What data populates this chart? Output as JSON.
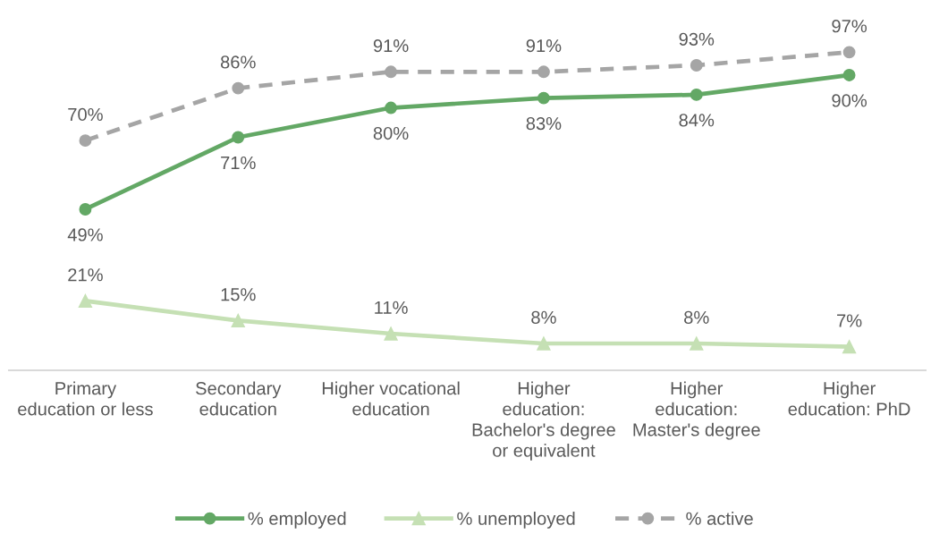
{
  "chart_data": {
    "type": "line",
    "categories": [
      "Primary\neducation or less",
      "Secondary\neducation",
      "Higher vocational\neducation",
      "Higher\neducation:\nBachelor's degree\nor equivalent",
      "Higher\neducation:\nMaster's degree",
      "Higher\neducation: PhD"
    ],
    "series": [
      {
        "name": "% employed",
        "color": "#63a865",
        "values": [
          49,
          71,
          80,
          83,
          84,
          90
        ],
        "value_labels": [
          "49%",
          "71%",
          "80%",
          "83%",
          "84%",
          "90%"
        ],
        "marker": "circle",
        "line_style": "solid"
      },
      {
        "name": "% unemployed",
        "color": "#c5e0b4",
        "values": [
          21,
          15,
          11,
          8,
          8,
          7
        ],
        "value_labels": [
          "21%",
          "15%",
          "11%",
          "8%",
          "8%",
          "7%"
        ],
        "marker": "triangle",
        "line_style": "solid"
      },
      {
        "name": "% active",
        "color": "#a5a5a5",
        "values": [
          70,
          86,
          91,
          91,
          93,
          97
        ],
        "value_labels": [
          "70%",
          "86%",
          "91%",
          "91%",
          "93%",
          "97%"
        ],
        "marker": "circle",
        "line_style": "dashed"
      }
    ],
    "tick_labels": "x",
    "legend": "bottom"
  }
}
